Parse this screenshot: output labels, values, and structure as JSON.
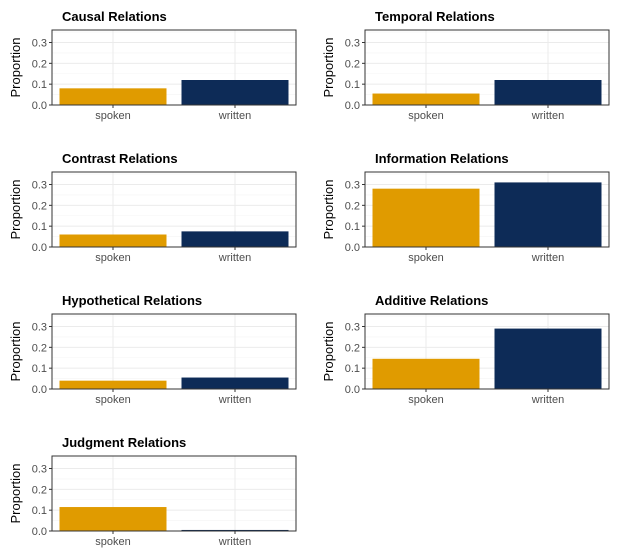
{
  "chart_data": [
    {
      "type": "bar",
      "title": "Causal Relations",
      "categories": [
        "spoken",
        "written"
      ],
      "values": [
        0.08,
        0.12
      ],
      "ylabel": "Proportion",
      "yticks": [
        "0.0",
        "0.1",
        "0.2",
        "0.3"
      ],
      "ylim": [
        0,
        0.36
      ]
    },
    {
      "type": "bar",
      "title": "Temporal Relations",
      "categories": [
        "spoken",
        "written"
      ],
      "values": [
        0.055,
        0.12
      ],
      "ylabel": "Proportion",
      "yticks": [
        "0.0",
        "0.1",
        "0.2",
        "0.3"
      ],
      "ylim": [
        0,
        0.36
      ]
    },
    {
      "type": "bar",
      "title": "Contrast Relations",
      "categories": [
        "spoken",
        "written"
      ],
      "values": [
        0.06,
        0.075
      ],
      "ylabel": "Proportion",
      "yticks": [
        "0.0",
        "0.1",
        "0.2",
        "0.3"
      ],
      "ylim": [
        0,
        0.36
      ]
    },
    {
      "type": "bar",
      "title": "Information Relations",
      "categories": [
        "spoken",
        "written"
      ],
      "values": [
        0.28,
        0.31
      ],
      "ylabel": "Proportion",
      "yticks": [
        "0.0",
        "0.1",
        "0.2",
        "0.3"
      ],
      "ylim": [
        0,
        0.36
      ]
    },
    {
      "type": "bar",
      "title": "Hypothetical Relations",
      "categories": [
        "spoken",
        "written"
      ],
      "values": [
        0.04,
        0.055
      ],
      "ylabel": "Proportion",
      "yticks": [
        "0.0",
        "0.1",
        "0.2",
        "0.3"
      ],
      "ylim": [
        0,
        0.36
      ]
    },
    {
      "type": "bar",
      "title": "Additive Relations",
      "categories": [
        "spoken",
        "written"
      ],
      "values": [
        0.145,
        0.29
      ],
      "ylabel": "Proportion",
      "yticks": [
        "0.0",
        "0.1",
        "0.2",
        "0.3"
      ],
      "ylim": [
        0,
        0.36
      ]
    },
    {
      "type": "bar",
      "title": "Judgment Relations",
      "categories": [
        "spoken",
        "written"
      ],
      "values": [
        0.115,
        0.005
      ],
      "ylabel": "Proportion",
      "yticks": [
        "0.0",
        "0.1",
        "0.2",
        "0.3"
      ],
      "ylim": [
        0,
        0.36
      ]
    }
  ],
  "colors": {
    "spoken": "#E09B00",
    "written": "#0D2B57"
  }
}
